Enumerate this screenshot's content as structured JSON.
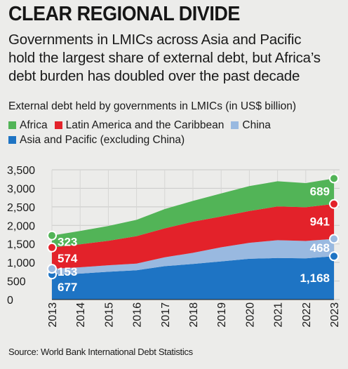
{
  "headline": "CLEAR REGIONAL DIVIDE",
  "subtitle_lines": [
    "Governments in LMICs across Asia and Pacific",
    "hold the largest share of external debt, but Africa’s",
    "debt burden has doubled over the past decade"
  ],
  "source": "Source: World Bank International Debt Statistics",
  "colors": {
    "asia": "#1e74c4",
    "china": "#99b9e0",
    "latam": "#e3222a",
    "africa": "#52b457",
    "background": "#ececea"
  },
  "chart_data": {
    "type": "area",
    "stacked": true,
    "title": "External debt held by governments in LMICs (in US$ billion)",
    "x": [
      "2013",
      "2014",
      "2015",
      "2016",
      "2017",
      "2018",
      "2019",
      "2020",
      "2021",
      "2022",
      "2023"
    ],
    "ylim": [
      0,
      3500
    ],
    "yticks": [
      "0",
      "500",
      "1,000",
      "1,500",
      "2,000",
      "2,500",
      "3,000",
      "3,500"
    ],
    "ytick_values": [
      0,
      500,
      1000,
      1500,
      2000,
      2500,
      3000,
      3500
    ],
    "grid": true,
    "legend_position": "top",
    "legend": [
      {
        "name": "Africa",
        "color": "#52b457"
      },
      {
        "name": "Latin America and the Caribbean",
        "color": "#e3222a"
      },
      {
        "name": "China",
        "color": "#99b9e0"
      },
      {
        "name": "Asia and Pacific (excluding China)",
        "color": "#1e74c4"
      }
    ],
    "series": [
      {
        "name": "Asia and Pacific (excluding China)",
        "color": "#1e74c4",
        "values": [
          677,
          700,
          750,
          790,
          900,
          960,
          1030,
          1100,
          1120,
          1110,
          1168
        ],
        "labels": {
          "first": "677",
          "last": "1,168"
        }
      },
      {
        "name": "China",
        "color": "#99b9e0",
        "values": [
          153,
          170,
          175,
          180,
          240,
          300,
          380,
          430,
          480,
          470,
          468
        ],
        "labels": {
          "first": "153",
          "last": "468"
        }
      },
      {
        "name": "Latin America and the Caribbean",
        "color": "#e3222a",
        "values": [
          574,
          620,
          660,
          740,
          780,
          840,
          830,
          860,
          910,
          910,
          941
        ],
        "labels": {
          "first": "574",
          "last": "941"
        }
      },
      {
        "name": "Africa",
        "color": "#52b457",
        "values": [
          323,
          360,
          400,
          440,
          520,
          560,
          620,
          670,
          680,
          650,
          689
        ],
        "labels": {
          "first": "323",
          "last": "689"
        }
      }
    ]
  }
}
